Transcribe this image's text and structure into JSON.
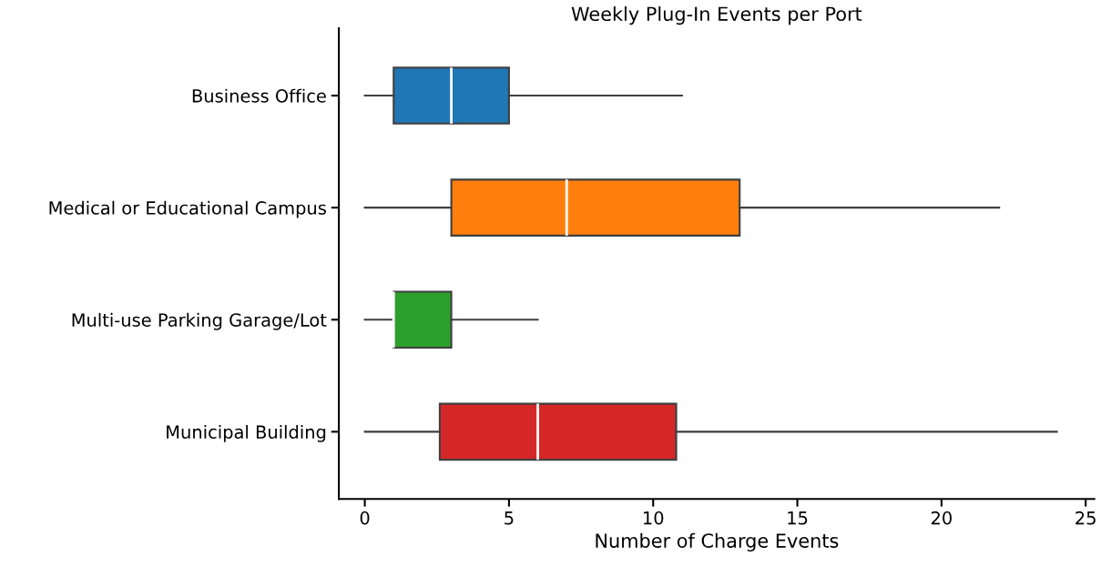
{
  "chart_data": {
    "type": "box",
    "orientation": "horizontal",
    "title": "Weekly Plug-In Events per Port",
    "xlabel": "Number of Charge Events",
    "categories": [
      "Business Office",
      "Medical or Educational Campus",
      "Multi-use Parking Garage/Lot",
      "Municipal Building"
    ],
    "colors": [
      "#1f77b4",
      "#ff7f0e",
      "#2ca02c",
      "#d62728"
    ],
    "boxes": [
      {
        "low": 0,
        "q1": 1,
        "median": 3,
        "q3": 5,
        "high": 11
      },
      {
        "low": 0,
        "q1": 3,
        "median": 7,
        "q3": 13,
        "high": 22
      },
      {
        "low": 0,
        "q1": 1,
        "median": 1,
        "q3": 3,
        "high": 6
      },
      {
        "low": 0,
        "q1": 2.6,
        "median": 6,
        "q3": 10.8,
        "high": 24
      }
    ],
    "xlim": [
      -0.9,
      25.3
    ],
    "xticks": [
      0,
      5,
      10,
      15,
      20,
      25
    ],
    "grid": false
  }
}
